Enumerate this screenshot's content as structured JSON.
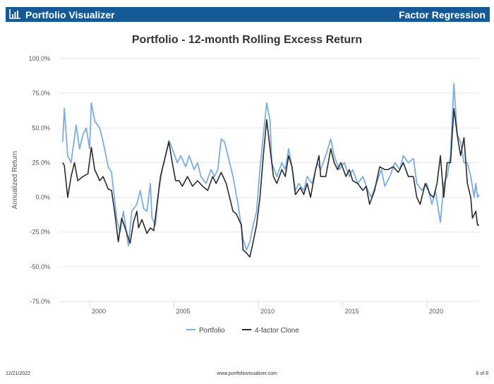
{
  "header": {
    "brand": "Portfolio Visualizer",
    "section": "Factor Regression",
    "logo_icon": "bar-chart-icon",
    "color": "#155a94"
  },
  "footer": {
    "date": "12/21/2022",
    "url": "www.portfoliovisualizer.com",
    "page": "6 of 8"
  },
  "chart_data": {
    "type": "line",
    "title": "Portfolio - 12-month Rolling Excess Return",
    "xlabel": "",
    "ylabel": "Annualized Return",
    "ylim": [
      -75,
      100
    ],
    "yticks": [
      "100.0%",
      "75.0%",
      "50.0%",
      "25.0%",
      "0.0%",
      "-25.0%",
      "-50.0%",
      "-75.0%"
    ],
    "ytick_values": [
      100,
      75,
      50,
      25,
      0,
      -25,
      -50,
      -75
    ],
    "xticks": [
      "2000",
      "2005",
      "2010",
      "2015",
      "2020"
    ],
    "xtick_values": [
      2000,
      2005,
      2010,
      2015,
      2020
    ],
    "xlim": [
      1998.2,
      2023.1
    ],
    "grid": true,
    "legend": "bottom",
    "series": [
      {
        "name": "Portfolio",
        "color": "#7cade0",
        "x": [
          1998.4,
          1998.5,
          1998.7,
          1998.9,
          1999.2,
          1999.4,
          1999.6,
          1999.8,
          2000.0,
          2000.1,
          2000.3,
          2000.6,
          2000.8,
          2001.1,
          2001.3,
          2001.6,
          2001.8,
          2002.0,
          2002.3,
          2002.5,
          2002.8,
          2003.0,
          2003.2,
          2003.4,
          2003.6,
          2003.7,
          2003.9,
          2004.1,
          2004.3,
          2004.5,
          2004.7,
          2004.9,
          2005.2,
          2005.4,
          2005.7,
          2005.9,
          2006.2,
          2006.4,
          2006.6,
          2006.9,
          2007.2,
          2007.4,
          2007.6,
          2007.8,
          2008.0,
          2008.2,
          2008.5,
          2008.8,
          2009.1,
          2009.3,
          2009.5,
          2009.7,
          2009.9,
          2010.1,
          2010.3,
          2010.5,
          2010.7,
          2010.8,
          2011.1,
          2011.4,
          2011.6,
          2011.8,
          2012.0,
          2012.2,
          2012.4,
          2012.7,
          2012.9,
          2013.2,
          2013.5,
          2013.7,
          2014.0,
          2014.3,
          2014.5,
          2014.8,
          2015.1,
          2015.4,
          2015.6,
          2015.9,
          2016.2,
          2016.5,
          2016.7,
          2017.0,
          2017.3,
          2017.5,
          2017.8,
          2018.1,
          2018.4,
          2018.6,
          2018.9,
          2019.2,
          2019.4,
          2019.7,
          2020.0,
          2020.3,
          2020.5,
          2020.8,
          2021.0,
          2021.2,
          2021.4,
          2021.6,
          2021.8,
          2022.0,
          2022.2,
          2022.4,
          2022.6,
          2022.8,
          2022.9,
          2023.0,
          2023.1
        ],
        "values": [
          40,
          64,
          30,
          25,
          52,
          35,
          45,
          50,
          35,
          68,
          55,
          50,
          40,
          22,
          18,
          -15,
          -25,
          -10,
          -35,
          -10,
          -5,
          5,
          -8,
          -10,
          10,
          -15,
          -20,
          5,
          20,
          30,
          41,
          35,
          25,
          30,
          22,
          30,
          20,
          25,
          15,
          10,
          20,
          15,
          20,
          42,
          40,
          30,
          15,
          -5,
          -30,
          -38,
          -32,
          -20,
          -10,
          20,
          45,
          68,
          55,
          25,
          15,
          25,
          20,
          35,
          22,
          5,
          10,
          5,
          15,
          10,
          25,
          20,
          30,
          42,
          30,
          20,
          25,
          15,
          20,
          10,
          15,
          5,
          0,
          10,
          20,
          8,
          15,
          25,
          20,
          30,
          25,
          28,
          10,
          5,
          10,
          -5,
          5,
          -18,
          10,
          15,
          30,
          82,
          45,
          40,
          25,
          25,
          15,
          0,
          10,
          0,
          2
        ]
      },
      {
        "name": "4-factor Clone",
        "color": "#2b2b2f",
        "x": [
          1998.4,
          1998.5,
          1998.7,
          1998.9,
          1999.1,
          1999.3,
          1999.6,
          1999.9,
          2000.1,
          2000.3,
          2000.6,
          2000.8,
          2001.1,
          2001.3,
          2001.5,
          2001.7,
          2001.9,
          2002.1,
          2002.4,
          2002.6,
          2002.8,
          2002.9,
          2003.1,
          2003.4,
          2003.6,
          2003.8,
          2004.2,
          2004.4,
          2004.7,
          2004.9,
          2005.1,
          2005.3,
          2005.5,
          2005.8,
          2006.1,
          2006.4,
          2006.7,
          2007.0,
          2007.3,
          2007.5,
          2007.8,
          2008.1,
          2008.3,
          2008.5,
          2008.7,
          2009.0,
          2009.1,
          2009.3,
          2009.5,
          2009.7,
          2009.9,
          2010.1,
          2010.3,
          2010.5,
          2010.7,
          2010.9,
          2011.1,
          2011.4,
          2011.6,
          2011.8,
          2012.0,
          2012.2,
          2012.5,
          2012.7,
          2012.9,
          2013.1,
          2013.4,
          2013.6,
          2013.7,
          2014.0,
          2014.3,
          2014.5,
          2014.7,
          2014.9,
          2015.2,
          2015.4,
          2015.6,
          2015.9,
          2016.2,
          2016.4,
          2016.6,
          2016.9,
          2017.2,
          2017.5,
          2017.7,
          2018.0,
          2018.3,
          2018.6,
          2018.9,
          2019.2,
          2019.4,
          2019.6,
          2019.9,
          2020.2,
          2020.4,
          2020.6,
          2020.8,
          2021.0,
          2021.2,
          2021.4,
          2021.6,
          2021.8,
          2022.0,
          2022.2,
          2022.4,
          2022.6,
          2022.7,
          2022.9,
          2023.0,
          2023.1
        ],
        "values": [
          25,
          23,
          0,
          15,
          25,
          12,
          15,
          17,
          36,
          20,
          12,
          15,
          6,
          5,
          -12,
          -32,
          -15,
          -22,
          -33,
          -18,
          -10,
          -22,
          -16,
          -26,
          -22,
          -24,
          15,
          25,
          40,
          25,
          12,
          12,
          8,
          15,
          8,
          12,
          8,
          5,
          15,
          10,
          18,
          10,
          0,
          -10,
          -12,
          -20,
          -38,
          -40,
          -43,
          -32,
          -20,
          0,
          30,
          56,
          35,
          15,
          10,
          20,
          15,
          30,
          22,
          2,
          7,
          2,
          10,
          0,
          20,
          30,
          15,
          15,
          35,
          25,
          20,
          25,
          15,
          20,
          12,
          10,
          5,
          8,
          -5,
          5,
          22,
          20,
          20,
          22,
          18,
          25,
          15,
          15,
          0,
          -5,
          10,
          2,
          0,
          10,
          30,
          0,
          25,
          25,
          64,
          45,
          30,
          43,
          10,
          0,
          -15,
          -10,
          -20,
          -20
        ]
      }
    ]
  }
}
